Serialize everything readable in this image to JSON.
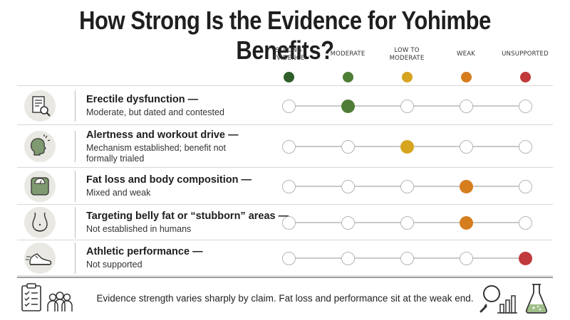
{
  "title": "How Strong Is the Evidence for Yohimbe Benefits?",
  "scale": {
    "levels": [
      {
        "label": [
          "STRONG",
          "EVIDENCE"
        ],
        "color": "#2f5e2a"
      },
      {
        "label": [
          "MODERATE"
        ],
        "color": "#4e7d35"
      },
      {
        "label": [
          "LOW TO",
          "MODERATE"
        ],
        "color": "#d6a41f"
      },
      {
        "label": [
          "WEAK"
        ],
        "color": "#d67d1e"
      },
      {
        "label": [
          "UNSUPPORTED"
        ],
        "color": "#c0393b"
      }
    ]
  },
  "rows": [
    {
      "icon": "document-magnifier-icon",
      "claim": "Erectile dysfunction —",
      "verdict": "Moderate, but dated and contested",
      "level": 1
    },
    {
      "icon": "head-alert-icon",
      "claim": "Alertness and workout drive —",
      "verdict": "Mechanism established; benefit not formally trialed",
      "level": 2
    },
    {
      "icon": "scale-icon",
      "claim": "Fat loss and body composition —",
      "verdict": "Mixed and weak",
      "level": 3
    },
    {
      "icon": "belly-icon",
      "claim": "Targeting belly fat or “stubborn” areas —",
      "verdict": "Not established in humans",
      "level": 3
    },
    {
      "icon": "running-shoe-icon",
      "claim": "Athletic performance —",
      "verdict": "Not supported",
      "level": 4
    }
  ],
  "footer": {
    "text": "Evidence strength varies sharply by claim. Fat loss and performance sit at the weak end.",
    "left_icons": [
      "checklist-icon",
      "people-icon"
    ],
    "right_icons": [
      "magnifier-chart-icon",
      "flask-icon"
    ]
  }
}
